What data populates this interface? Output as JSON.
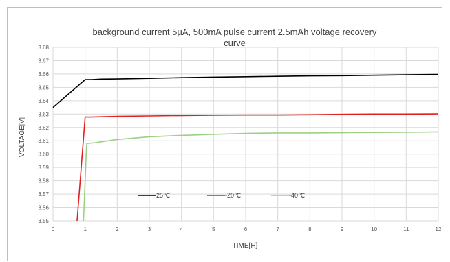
{
  "chart_data": {
    "type": "line",
    "title_line1": "background current 5μA, 500mA pulse current 2.5mAh voltage recovery",
    "title_line2": "curve",
    "xlabel": "TIME[H]",
    "ylabel": "VOLTAGE[V]",
    "xlim": [
      0,
      12
    ],
    "ylim": [
      3.55,
      3.68
    ],
    "x_ticks": [
      "0",
      "1",
      "2",
      "3",
      "4",
      "5",
      "6",
      "7",
      "8",
      "9",
      "10",
      "11",
      "12"
    ],
    "y_ticks": [
      "3.55",
      "3.56",
      "3.57",
      "3.58",
      "3.59",
      "3.60",
      "3.61",
      "3.62",
      "3.63",
      "3.64",
      "3.65",
      "3.66",
      "3.67",
      "3.68"
    ],
    "grid": true,
    "legend_position": "bottom-center",
    "series": [
      {
        "name": "25℃",
        "color": "#000000",
        "points": [
          [
            0,
            3.635
          ],
          [
            1,
            3.6558
          ],
          [
            1.2,
            3.6558
          ],
          [
            1.5,
            3.6562
          ],
          [
            2,
            3.6563
          ],
          [
            3,
            3.6568
          ],
          [
            4,
            3.6573
          ],
          [
            5,
            3.6577
          ],
          [
            6,
            3.658
          ],
          [
            7,
            3.6583
          ],
          [
            8,
            3.6586
          ],
          [
            9,
            3.6588
          ],
          [
            10,
            3.6591
          ],
          [
            11,
            3.6594
          ],
          [
            12,
            3.6597
          ]
        ]
      },
      {
        "name": "-20℃",
        "color": "#e02020",
        "points": [
          [
            0.75,
            3.55
          ],
          [
            1,
            3.6278
          ],
          [
            1.2,
            3.6278
          ],
          [
            2,
            3.6283
          ],
          [
            3,
            3.6286
          ],
          [
            4,
            3.6289
          ],
          [
            5,
            3.6292
          ],
          [
            6,
            3.6293
          ],
          [
            7,
            3.6293
          ],
          [
            8,
            3.6295
          ],
          [
            9,
            3.6298
          ],
          [
            10,
            3.63
          ],
          [
            11,
            3.63
          ],
          [
            12,
            3.6301
          ]
        ]
      },
      {
        "name": "-40℃",
        "color": "#9dcf86",
        "points": [
          [
            0.95,
            3.55
          ],
          [
            1.05,
            3.608
          ],
          [
            1.3,
            3.6085
          ],
          [
            2,
            3.611
          ],
          [
            3,
            3.613
          ],
          [
            4,
            3.614
          ],
          [
            5,
            3.6148
          ],
          [
            6,
            3.6155
          ],
          [
            7,
            3.6158
          ],
          [
            8,
            3.6158
          ],
          [
            9,
            3.616
          ],
          [
            10,
            3.6162
          ],
          [
            11,
            3.6163
          ],
          [
            12,
            3.6166
          ]
        ]
      }
    ]
  }
}
